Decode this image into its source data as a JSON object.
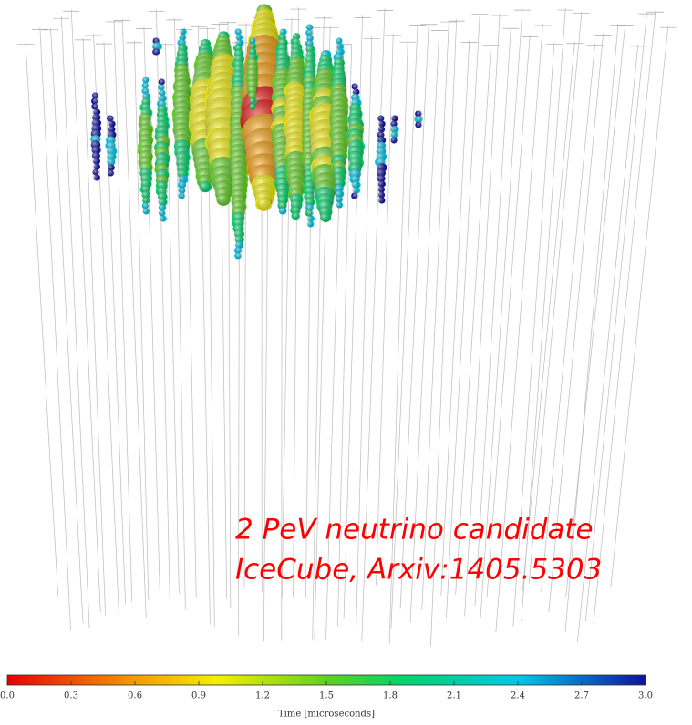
{
  "annotation": [
    "2 PeV neutrino candidate",
    "IceCube, Arxiv:1405.5303"
  ],
  "colorbar": {
    "label": "Time [microseconds]",
    "lim": [
      0,
      3
    ],
    "ticks": [
      {
        "value": 0,
        "label": "0.0"
      },
      0.3,
      0.6,
      0.9,
      1.2,
      1.5,
      1.8,
      2.1,
      2.4,
      2.7,
      {
        "value": 3,
        "label": "3.0"
      }
    ]
  }
}
